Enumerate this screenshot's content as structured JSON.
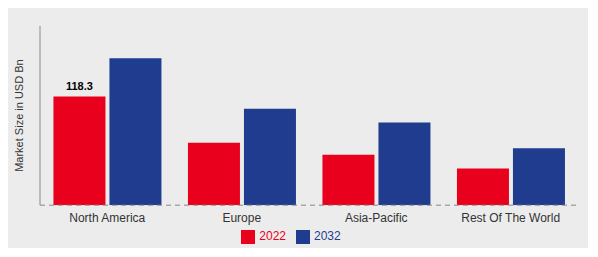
{
  "chart_data": {
    "type": "bar",
    "categories": [
      "North America",
      "Europe",
      "Asia-Pacific",
      "Rest Of The World"
    ],
    "series": [
      {
        "name": "2022",
        "color": "#e8001c",
        "values": [
          118.3,
          68,
          55,
          40
        ]
      },
      {
        "name": "2032",
        "color": "#1f3c8f",
        "values": [
          160,
          105,
          90,
          62
        ]
      }
    ],
    "y_label": "Market Size in USD Bn",
    "ylim": [
      0,
      195
    ],
    "tick_labels": "x",
    "grid": false,
    "legend": "bottom",
    "annotations": [
      {
        "text": "118.3",
        "x": "North America",
        "series": "2022"
      }
    ]
  }
}
